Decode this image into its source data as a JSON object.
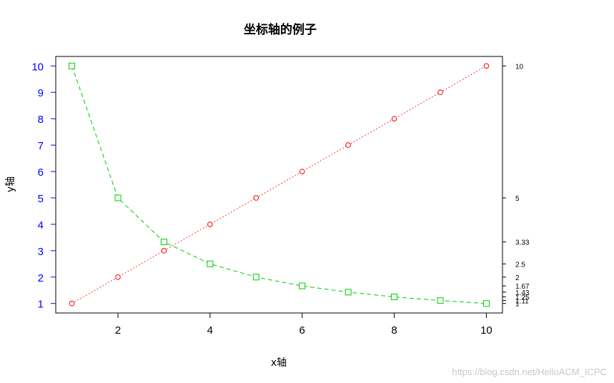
{
  "chart_data": {
    "type": "line",
    "title": "坐标轴的例子",
    "xlabel": "x轴",
    "ylabel": "y轴",
    "xlim": [
      0.65,
      10.35
    ],
    "ylim": [
      0.64,
      10.36
    ],
    "x_ticks": [
      2,
      4,
      6,
      8,
      10
    ],
    "y_ticks_left": [
      1,
      2,
      3,
      4,
      5,
      6,
      7,
      8,
      9,
      10
    ],
    "y_ticks_right": [
      {
        "value": 10,
        "label": "10"
      },
      {
        "value": 5,
        "label": "5"
      },
      {
        "value": 3.333,
        "label": "3.33"
      },
      {
        "value": 2.5,
        "label": "2.5"
      },
      {
        "value": 2,
        "label": "2"
      },
      {
        "value": 1.667,
        "label": "1.67"
      },
      {
        "value": 1.429,
        "label": "1.43"
      },
      {
        "value": 1.25,
        "label": "1.25"
      },
      {
        "value": 1.111,
        "label": "1.11"
      },
      {
        "value": 1,
        "label": "1"
      }
    ],
    "left_axis_color": "#0000ff",
    "grid": false,
    "series": [
      {
        "marker": "circle",
        "line": "dotted",
        "color": "#ff0000",
        "x": [
          1,
          2,
          3,
          4,
          5,
          6,
          7,
          8,
          9,
          10
        ],
        "y": [
          1,
          2,
          3,
          4,
          5,
          6,
          7,
          8,
          9,
          10
        ]
      },
      {
        "marker": "square",
        "line": "dashed",
        "color": "#00cc00",
        "x": [
          1,
          2,
          3,
          4,
          5,
          6,
          7,
          8,
          9,
          10
        ],
        "y": [
          10,
          5,
          3.333,
          2.5,
          2,
          1.667,
          1.429,
          1.25,
          1.111,
          1
        ]
      }
    ]
  },
  "watermark": "https://blog.csdn.net/HelloACM_ICPC"
}
